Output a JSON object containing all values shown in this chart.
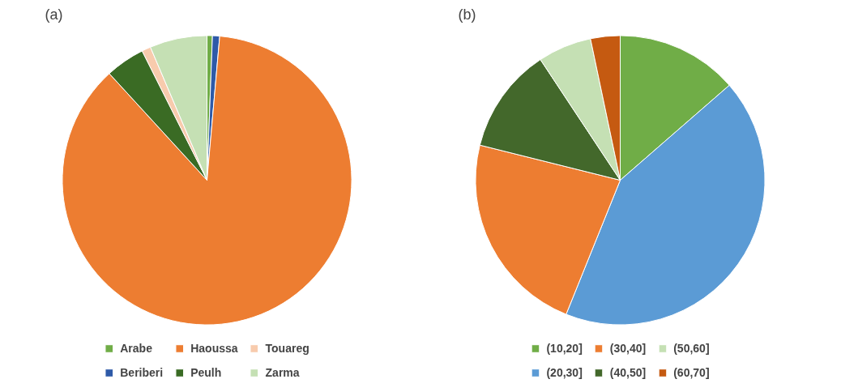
{
  "chart_data": [
    {
      "type": "pie",
      "title": "(a)",
      "categories": [
        "Arabe",
        "Beriberi",
        "Haoussa",
        "Peulh",
        "Touareg",
        "Zarma"
      ],
      "values": [
        0.6,
        0.8,
        86.8,
        4.4,
        1.0,
        6.4
      ],
      "colors": [
        "#70ad47",
        "#2e5aa8",
        "#ed7d31",
        "#3a6b24",
        "#f8cbad",
        "#c5e0b4"
      ],
      "legend": "bottom"
    },
    {
      "type": "pie",
      "title": "(b)",
      "categories": [
        "(10,20]",
        "(20,30]",
        "(30,40]",
        "(40,50]",
        "(50,60]",
        "(60,70]"
      ],
      "values": [
        13.6,
        42.5,
        22.8,
        11.8,
        6.0,
        3.3
      ],
      "colors": [
        "#70ad47",
        "#5b9bd5",
        "#ed7d31",
        "#43682b",
        "#c5e0b4",
        "#c55a11"
      ],
      "legend": "bottom"
    }
  ]
}
